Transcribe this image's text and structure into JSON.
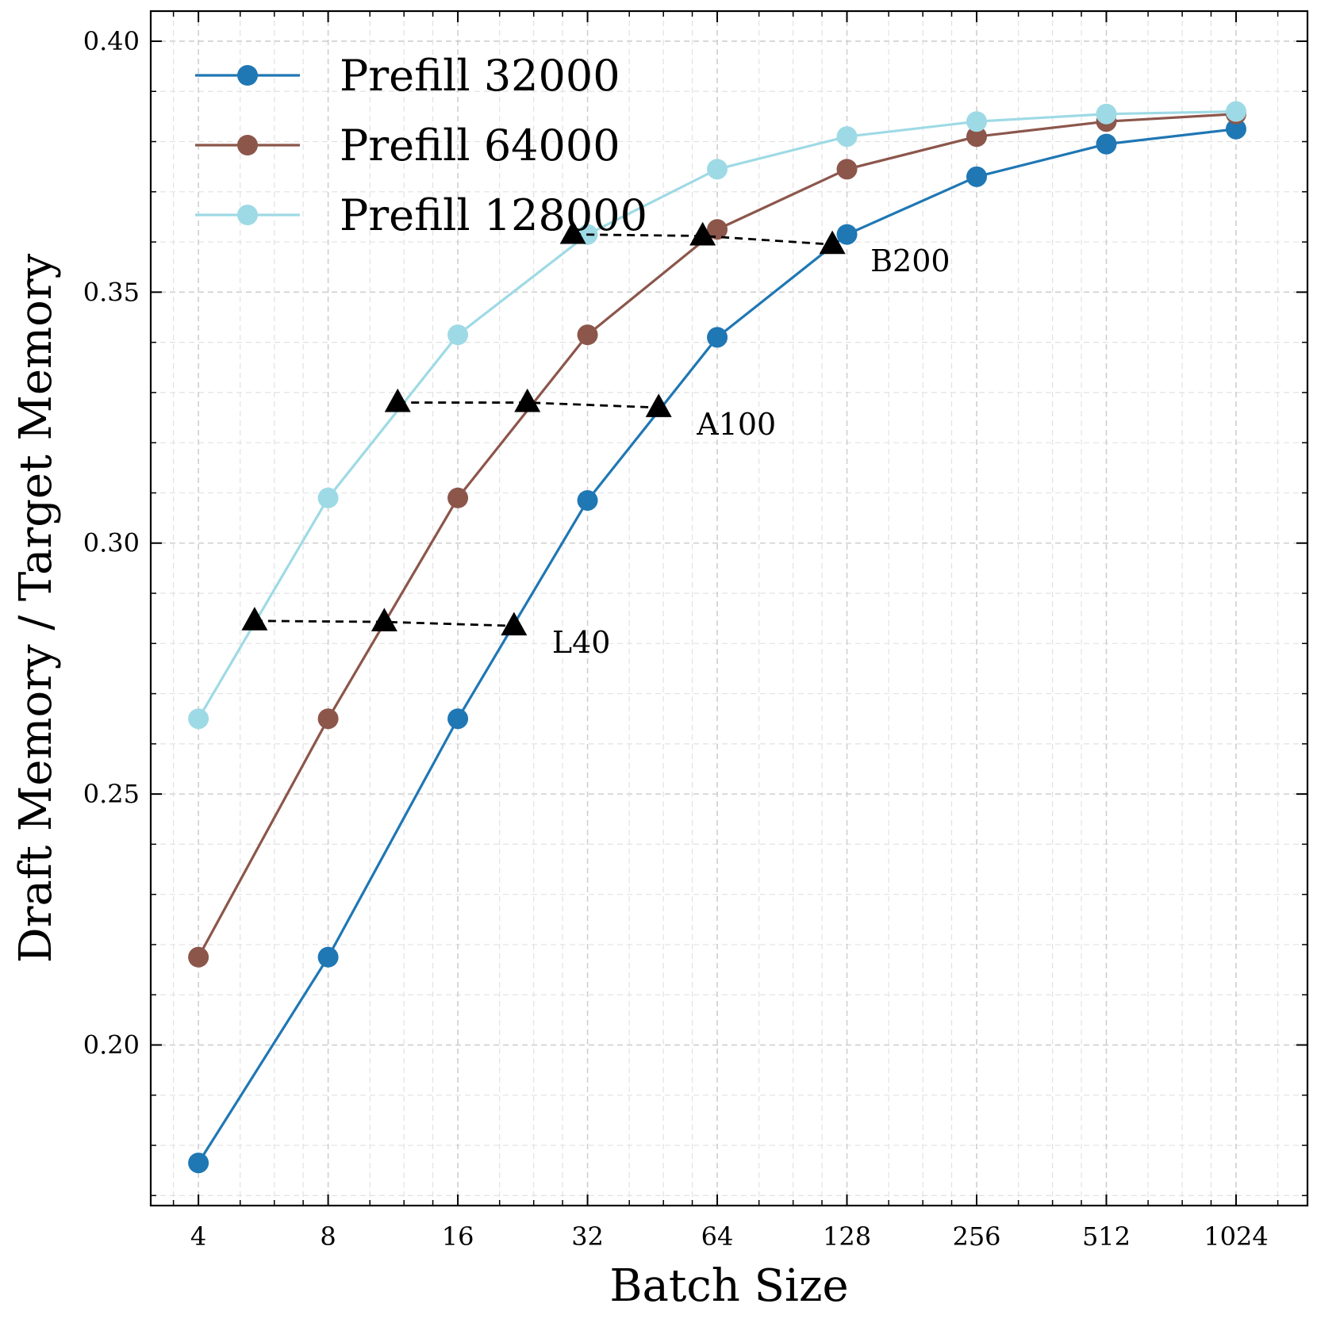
{
  "chart_data": {
    "type": "line",
    "title": "",
    "xlabel": "Batch Size",
    "ylabel": "Draft Memory / Target Memory",
    "xscale": "log2",
    "x": [
      4,
      8,
      16,
      32,
      64,
      128,
      256,
      512,
      1024
    ],
    "x_tick_labels": [
      "4",
      "8",
      "16",
      "32",
      "64",
      "128",
      "256",
      "512",
      "1024"
    ],
    "xlim": [
      3.1,
      1500
    ],
    "ylim": [
      0.168,
      0.406
    ],
    "y_ticks": [
      0.2,
      0.25,
      0.3,
      0.35,
      0.4
    ],
    "y_tick_labels": [
      "0.20",
      "0.25",
      "0.30",
      "0.35",
      "0.40"
    ],
    "grid": true,
    "legend_position": "top-left",
    "series": [
      {
        "name": "Prefill 32000",
        "color": "#1f77b4",
        "values": [
          0.1765,
          0.2175,
          0.265,
          0.3085,
          0.341,
          0.3615,
          0.373,
          0.3795,
          0.3825
        ]
      },
      {
        "name": "Prefill 64000",
        "color": "#8c564b",
        "values": [
          0.2175,
          0.265,
          0.309,
          0.3415,
          0.3625,
          0.3745,
          0.381,
          0.384,
          0.3855
        ]
      },
      {
        "name": "Prefill 128000",
        "color": "#9edae5",
        "values": [
          0.265,
          0.309,
          0.3415,
          0.3615,
          0.3745,
          0.381,
          0.384,
          0.3855,
          0.386
        ]
      }
    ],
    "annotations": [
      {
        "label": "L40",
        "marker": "triangle",
        "color": "#000000",
        "points": [
          {
            "x": 5.4,
            "y": 0.2845
          },
          {
            "x": 10.8,
            "y": 0.2843
          },
          {
            "x": 21.6,
            "y": 0.2835
          }
        ]
      },
      {
        "label": "A100",
        "marker": "triangle",
        "color": "#000000",
        "points": [
          {
            "x": 11.6,
            "y": 0.328
          },
          {
            "x": 23.2,
            "y": 0.328
          },
          {
            "x": 46.8,
            "y": 0.327
          }
        ]
      },
      {
        "label": "B200",
        "marker": "triangle",
        "color": "#000000",
        "points": [
          {
            "x": 29.6,
            "y": 0.3615
          },
          {
            "x": 59.2,
            "y": 0.3612
          },
          {
            "x": 118.4,
            "y": 0.3595
          }
        ]
      }
    ]
  }
}
